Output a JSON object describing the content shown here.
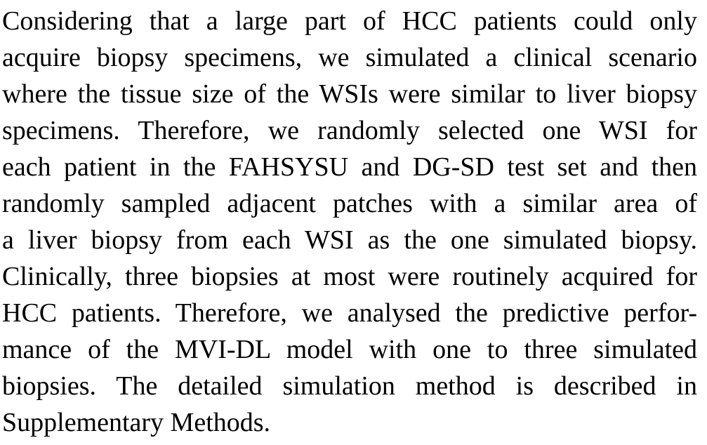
{
  "paragraph": {
    "lines": [
      "Considering that a large part of HCC patients could only",
      "acquire biopsy specimens, we simulated a clinical scenario",
      "where the tissue size of the WSIs were similar to liver biopsy",
      "specimens. Therefore, we randomly selected one WSI for",
      "each patient in the FAHSYSU and DG-SD test set and then",
      "randomly sampled adjacent patches with a similar area of",
      "a liver biopsy from each WSI as the one simulated biopsy.",
      "Clinically, three biopsies at most were routinely acquired for",
      "HCC patients. Therefore, we analysed the predictive perfor-",
      "mance of the MVI-DL model with one to three simulated",
      "biopsies. The detailed simulation method is described in",
      "Supplementary Methods."
    ]
  }
}
